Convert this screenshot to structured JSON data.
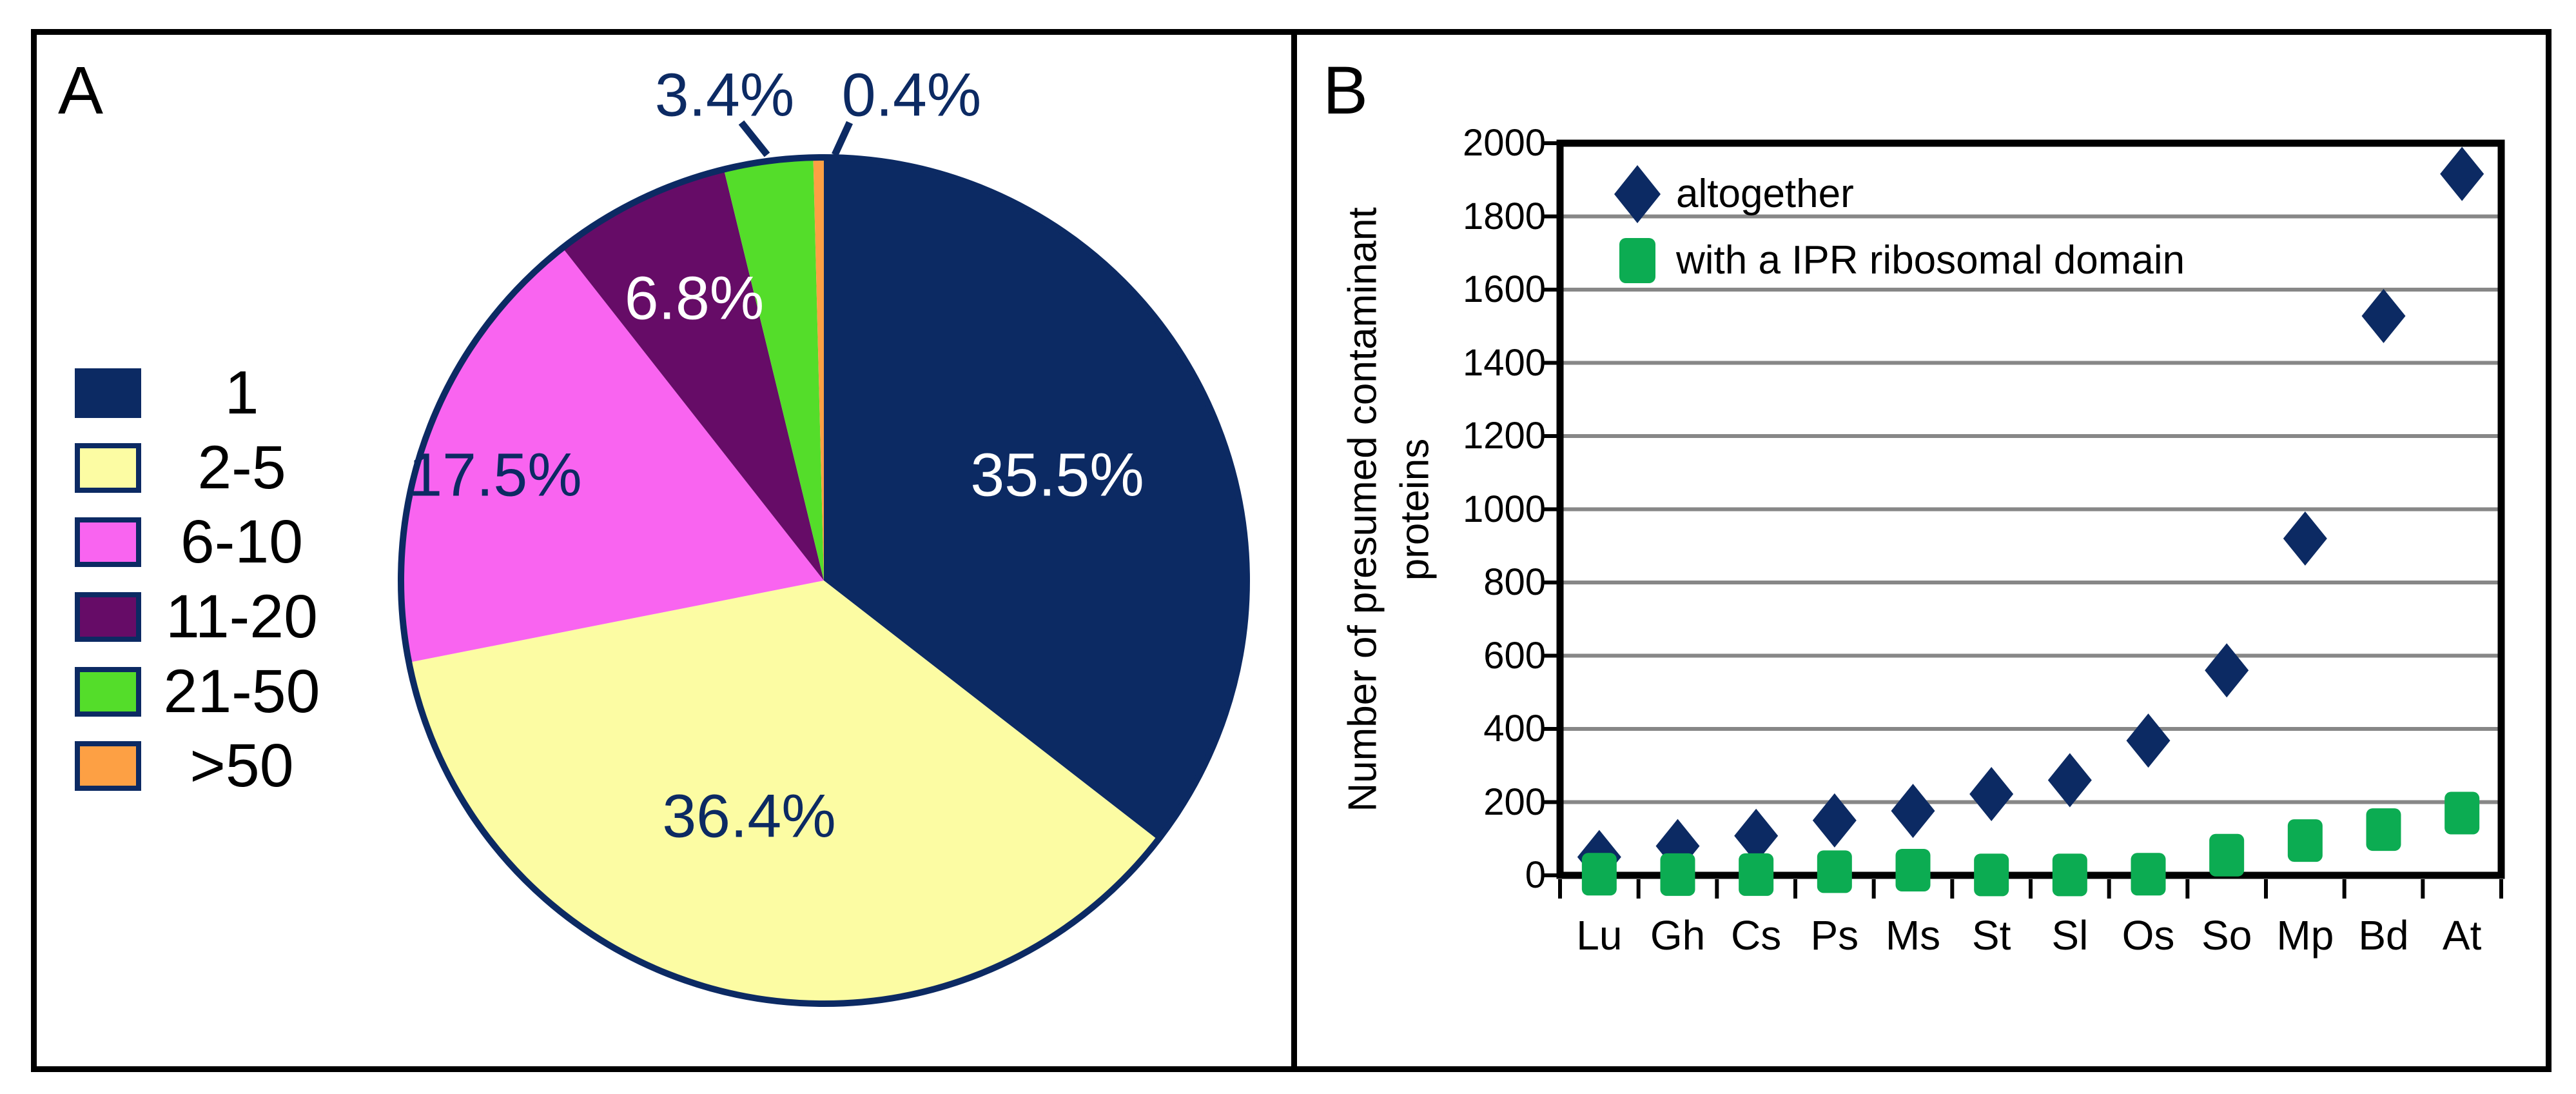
{
  "panelA": {
    "label": "A",
    "legend": [
      {
        "label": "1"
      },
      {
        "label": "2-5"
      },
      {
        "label": "6-10"
      },
      {
        "label": "11-20"
      },
      {
        "label": "21-50"
      },
      {
        "label": ">50"
      }
    ],
    "slice_labels": [
      "35.5%",
      "36.4%",
      "17.5%",
      "6.8%",
      "3.4%",
      "0.4%"
    ]
  },
  "panelB": {
    "label": "B",
    "y_title_line1": "Number of presumed contaminant",
    "y_title_line2": "proteins",
    "y_ticks": [
      "0",
      "200",
      "400",
      "600",
      "800",
      "1000",
      "1200",
      "1400",
      "1600",
      "1800",
      "2000"
    ],
    "x_labels": [
      "Lu",
      "Gh",
      "Cs",
      "Ps",
      "Ms",
      "St",
      "Sl",
      "Os",
      "So",
      "Mp",
      "Bd",
      "At"
    ],
    "legend": [
      {
        "label": "altogether"
      },
      {
        "label": "with a IPR ribosomal domain"
      }
    ]
  },
  "colors": {
    "navy": "#0c2a63",
    "pale_yellow": "#fcfca3",
    "pink": "#f964f0",
    "purple": "#660c67",
    "bright_green": "#54dd2a",
    "orange": "#fda044",
    "scatter_green": "#0cac52",
    "gridline_gray": "#878787",
    "label_white": "#ffffff",
    "black": "#000000"
  },
  "chart_data": [
    {
      "type": "pie",
      "title": "",
      "categories": [
        "1",
        "2-5",
        "6-10",
        "11-20",
        "21-50",
        ">50"
      ],
      "values": [
        35.5,
        36.4,
        17.5,
        6.8,
        3.4,
        0.4
      ],
      "unit": "percent",
      "colors": [
        "#0c2a63",
        "#fcfca3",
        "#f964f0",
        "#660c67",
        "#54dd2a",
        "#fda044"
      ],
      "slice_label_colors": [
        "#ffffff",
        "#0c2a63",
        "#0c2a63",
        "#ffffff",
        "#0c2a63",
        "#0c2a63"
      ],
      "start_angle_deg": 0,
      "direction": "clockwise",
      "outline_color": "#0c2a63",
      "legend_position": "left"
    },
    {
      "type": "scatter",
      "categories": [
        "Lu",
        "Gh",
        "Cs",
        "Ps",
        "Ms",
        "St",
        "Sl",
        "Os",
        "So",
        "Mp",
        "Bd",
        "At"
      ],
      "series": [
        {
          "name": "altogether",
          "marker": "diamond",
          "color": "#0c2a63",
          "values": [
            50,
            80,
            108,
            150,
            176,
            222,
            260,
            368,
            560,
            920,
            1528,
            1916
          ]
        },
        {
          "name": "with a IPR ribosomal domain",
          "marker": "square",
          "color": "#0cac52",
          "values": [
            3,
            2,
            2,
            10,
            14,
            1,
            1,
            3,
            55,
            95,
            125,
            170
          ]
        }
      ],
      "xlabel": "",
      "ylabel": "Number of presumed contaminant proteins",
      "ylim": [
        0,
        2000
      ],
      "ytick_step": 200,
      "grid": true,
      "legend_position": "top-left-inside"
    }
  ]
}
